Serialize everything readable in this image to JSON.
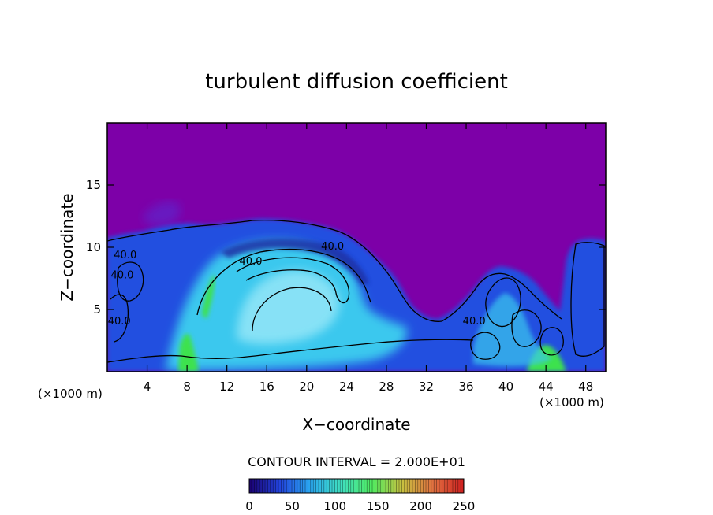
{
  "colors": {
    "background": "#ffffff",
    "upper_field": "#7d00a8",
    "low_blue": "#2050e0",
    "mid_cyan": "#3ac8ee",
    "light_cyan": "#9ae8f8",
    "green": "#3ee24e",
    "contour": "#000000"
  },
  "chart_data": {
    "type": "heatmap",
    "title": "turbulent diffusion coefficient",
    "xlabel": "X−coordinate",
    "ylabel": "Z−coordinate",
    "x_unit_left": "(×1000 m)",
    "x_unit_right": "(×1000 m)",
    "xlim": [
      0,
      50
    ],
    "ylim": [
      0,
      20
    ],
    "x_ticks": [
      4,
      8,
      12,
      16,
      20,
      24,
      28,
      32,
      36,
      40,
      44,
      48
    ],
    "y_ticks": [
      5,
      10,
      15
    ],
    "contour_interval_text": "CONTOUR INTERVAL = 2.000E+01",
    "contour_labels": [
      {
        "text": "40.0",
        "x": 1.8,
        "y": 9.1
      },
      {
        "text": "40.0",
        "x": 1.5,
        "y": 7.5
      },
      {
        "text": "40.0",
        "x": 1.2,
        "y": 3.8
      },
      {
        "text": "40.0",
        "x": 14.4,
        "y": 8.6
      },
      {
        "text": "40.0",
        "x": 22.6,
        "y": 9.8
      },
      {
        "text": "40.0",
        "x": 36.8,
        "y": 3.8
      }
    ],
    "colorbar": {
      "min": 0,
      "max": 250,
      "tick_values": [
        0,
        50,
        100,
        150,
        200,
        250
      ],
      "tick_labels": [
        "0",
        "50",
        "100",
        "150",
        "200",
        "250"
      ],
      "colors": [
        "#1a0070",
        "#2244dd",
        "#2aa8f0",
        "#40e0c0",
        "#50ea60",
        "#c8c040",
        "#e07040",
        "#d02020"
      ]
    }
  }
}
